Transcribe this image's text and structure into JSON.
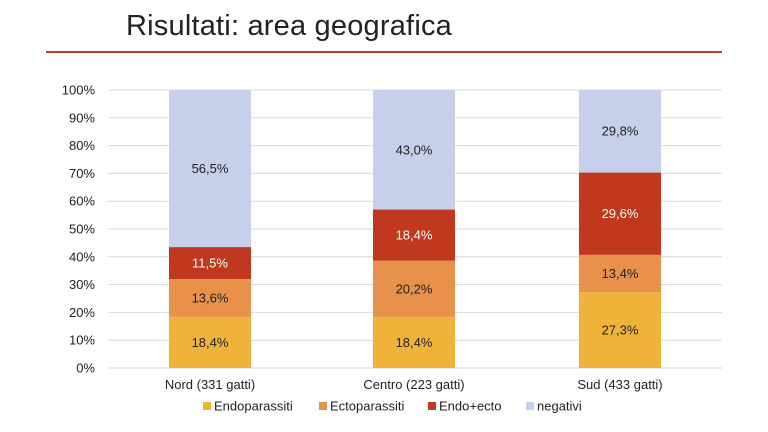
{
  "slide": {
    "title": "Risultati: area geografica"
  },
  "chart_data": {
    "type": "bar",
    "stacked": true,
    "normalized": true,
    "categories": [
      "Nord (331 gatti)",
      "Centro (223 gatti)",
      "Sud (433 gatti)"
    ],
    "series": [
      {
        "name": "Endoparassiti",
        "values": [
          18.4,
          18.4,
          27.3
        ],
        "labels": [
          "18,4%",
          "18,4%",
          "27,3%"
        ],
        "color": "#f0b33a",
        "label_color": "#222222"
      },
      {
        "name": "Ectoparassiti",
        "values": [
          13.6,
          20.2,
          13.4
        ],
        "labels": [
          "13,6%",
          "20,2%",
          "13,4%"
        ],
        "color": "#e8914a",
        "label_color": "#222222"
      },
      {
        "name": "Endo+ecto",
        "values": [
          11.5,
          18.4,
          29.6
        ],
        "labels": [
          "11,5%",
          "18,4%",
          "29,6%"
        ],
        "color": "#c0391f",
        "label_color": "#ffffff"
      },
      {
        "name": "negativi",
        "values": [
          56.5,
          43.0,
          29.8
        ],
        "labels": [
          "56,5%",
          "43,0%",
          "29,8%"
        ],
        "color": "#c6d0ea",
        "label_color": "#222222"
      }
    ],
    "y_ticks": [
      "0%",
      "10%",
      "20%",
      "30%",
      "40%",
      "50%",
      "60%",
      "70%",
      "80%",
      "90%",
      "100%"
    ],
    "ylim": [
      0,
      100
    ],
    "grid": true,
    "legend_position": "bottom",
    "xlabel": "",
    "ylabel": ""
  }
}
